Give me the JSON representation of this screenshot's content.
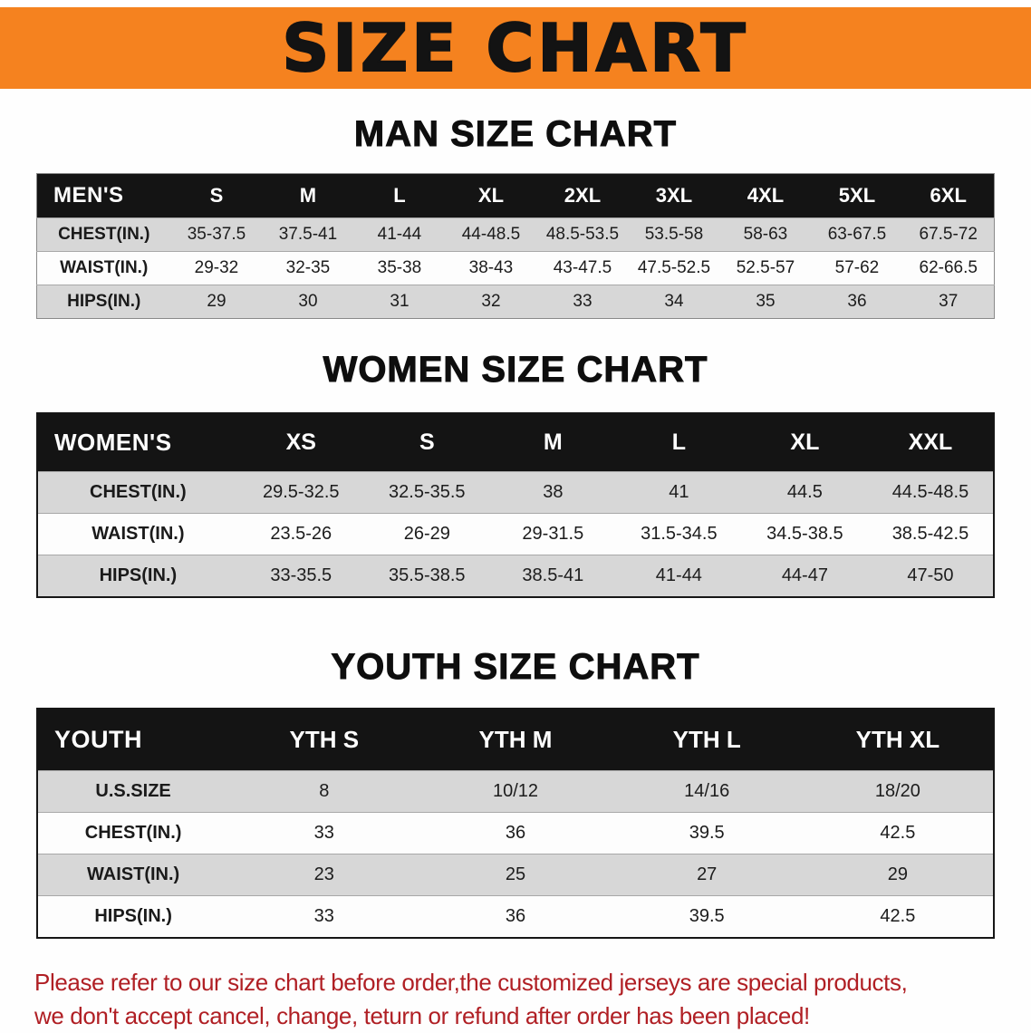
{
  "banner": {
    "title": "SIZE CHART",
    "bg_color": "#F5821F",
    "text_color": "#131313"
  },
  "chart_data": [
    {
      "type": "table",
      "title": "MAN SIZE CHART",
      "header": [
        "MEN'S",
        "S",
        "M",
        "L",
        "XL",
        "2XL",
        "3XL",
        "4XL",
        "5XL",
        "6XL"
      ],
      "rows": [
        {
          "label": "CHEST(IN.)",
          "values": [
            "35-37.5",
            "37.5-41",
            "41-44",
            "44-48.5",
            "48.5-53.5",
            "53.5-58",
            "58-63",
            "63-67.5",
            "67.5-72"
          ]
        },
        {
          "label": "WAIST(IN.)",
          "values": [
            "29-32",
            "32-35",
            "35-38",
            "38-43",
            "43-47.5",
            "47.5-52.5",
            "52.5-57",
            "57-62",
            "62-66.5"
          ]
        },
        {
          "label": "HIPS(IN.)",
          "values": [
            "29",
            "30",
            "31",
            "32",
            "33",
            "34",
            "35",
            "36",
            "37"
          ]
        }
      ]
    },
    {
      "type": "table",
      "title": "WOMEN SIZE CHART",
      "header": [
        "WOMEN'S",
        "XS",
        "S",
        "M",
        "L",
        "XL",
        "XXL"
      ],
      "rows": [
        {
          "label": "CHEST(IN.)",
          "values": [
            "29.5-32.5",
            "32.5-35.5",
            "38",
            "41",
            "44.5",
            "44.5-48.5"
          ]
        },
        {
          "label": "WAIST(IN.)",
          "values": [
            "23.5-26",
            "26-29",
            "29-31.5",
            "31.5-34.5",
            "34.5-38.5",
            "38.5-42.5"
          ]
        },
        {
          "label": "HIPS(IN.)",
          "values": [
            "33-35.5",
            "35.5-38.5",
            "38.5-41",
            "41-44",
            "44-47",
            "47-50"
          ]
        }
      ]
    },
    {
      "type": "table",
      "title": "YOUTH SIZE CHART",
      "header": [
        "YOUTH",
        "YTH S",
        "YTH M",
        "YTH L",
        "YTH XL"
      ],
      "rows": [
        {
          "label": "U.S.SIZE",
          "values": [
            "8",
            "10/12",
            "14/16",
            "18/20"
          ]
        },
        {
          "label": "CHEST(IN.)",
          "values": [
            "33",
            "36",
            "39.5",
            "42.5"
          ]
        },
        {
          "label": "WAIST(IN.)",
          "values": [
            "23",
            "25",
            "27",
            "29"
          ]
        },
        {
          "label": "HIPS(IN.)",
          "values": [
            "33",
            "36",
            "39.5",
            "42.5"
          ]
        }
      ]
    }
  ],
  "footer": {
    "line1": "Please refer to our size chart before order,the customized jerseys are special products,",
    "line2": "we don't accept cancel, change, teturn or refund after order has been placed!",
    "text_color": "#b01f24"
  },
  "colors": {
    "header_row_bg": "#141414",
    "stripe_row_bg": "#d7d7d7"
  }
}
